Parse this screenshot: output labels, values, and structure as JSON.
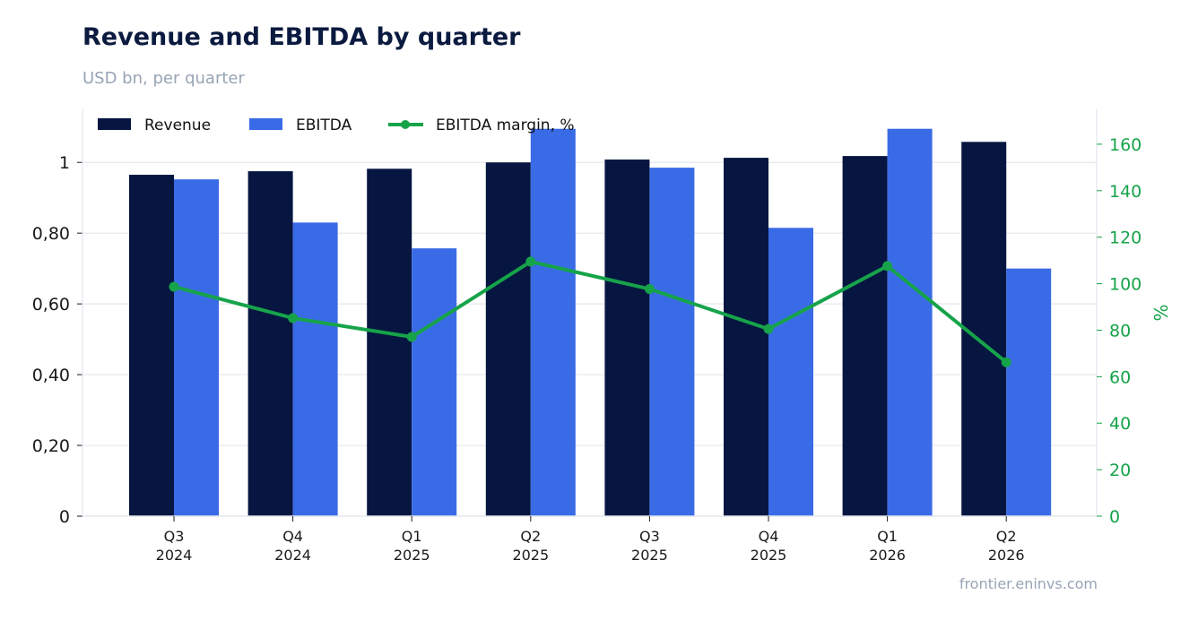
{
  "title": "Revenue and EBITDA by quarter",
  "subtitle": "USD bn, per quarter",
  "footer": "frontier.eninvs.com",
  "colors": {
    "revenue": "#061640",
    "ebitda": "#3a6be6",
    "margin": "#16a34a",
    "grid": "#e3e7ee",
    "axis_text": "#1a1a1a"
  },
  "chart_data": {
    "type": "bar",
    "categories": [
      [
        "Q3",
        "2024"
      ],
      [
        "Q4",
        "2024"
      ],
      [
        "Q1",
        "2025"
      ],
      [
        "Q2",
        "2025"
      ],
      [
        "Q3",
        "2025"
      ],
      [
        "Q4",
        "2025"
      ],
      [
        "Q1",
        "2026"
      ],
      [
        "Q2",
        "2026"
      ]
    ],
    "series": [
      {
        "name": "Revenue",
        "type": "bar",
        "axis": "left",
        "values": [
          0.965,
          0.975,
          0.982,
          1.0,
          1.008,
          1.013,
          1.018,
          1.058
        ]
      },
      {
        "name": "EBITDA",
        "type": "bar",
        "axis": "left",
        "values": [
          0.952,
          0.83,
          0.757,
          1.095,
          0.985,
          0.815,
          1.095,
          0.7
        ]
      },
      {
        "name": "EBITDA margin, %",
        "type": "line",
        "axis": "right",
        "values": [
          98.7,
          85.2,
          77.1,
          109.5,
          97.7,
          80.5,
          107.6,
          66.2
        ]
      }
    ],
    "y_left": {
      "ylim": [
        0,
        1.15
      ],
      "ticks": [
        0,
        0.2,
        0.4,
        0.6,
        0.8,
        1
      ],
      "tick_labels": [
        "0",
        "0,20",
        "0,40",
        "0,60",
        "0,80",
        "1"
      ]
    },
    "y_right": {
      "label": "%",
      "ylim": [
        0,
        175
      ],
      "ticks": [
        0,
        20,
        40,
        60,
        80,
        100,
        120,
        140,
        160
      ],
      "tick_labels": [
        "0",
        "20",
        "40",
        "60",
        "80",
        "100",
        "120",
        "140",
        "160"
      ]
    },
    "grid": true,
    "legend": "top-left"
  }
}
